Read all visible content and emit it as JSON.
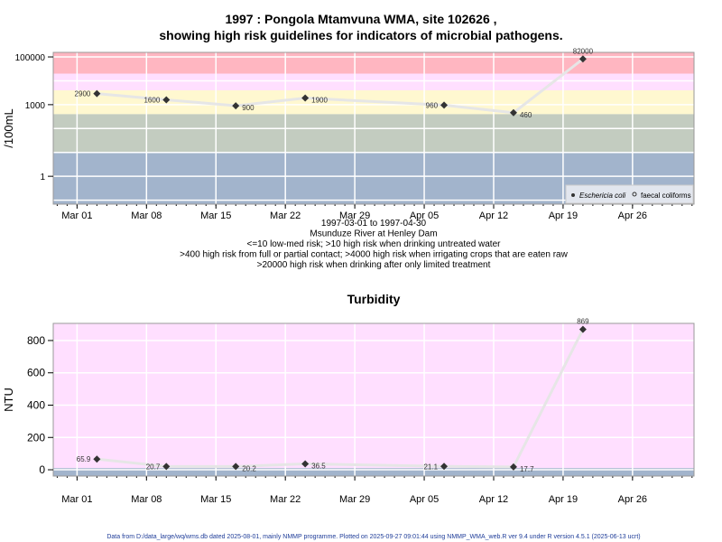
{
  "chart_data": [
    {
      "type": "line",
      "title_line1": "1997 : Pongola Mtamvuna WMA, site 102626 ,",
      "title_line2": "showing high risk guidelines for indicators of microbial pathogens.",
      "ylabel": "/100mL",
      "yscale": "log",
      "ylim": [
        0.068,
        155000
      ],
      "yticks": [
        {
          "v": 1,
          "label": "1"
        },
        {
          "v": 1000,
          "label": "1000"
        },
        {
          "v": 100000,
          "label": "100000"
        }
      ],
      "x_day_range": [
        -2.4,
        62.2
      ],
      "xticks": [
        {
          "day": 0,
          "label": "Mar 01"
        },
        {
          "day": 7,
          "label": "Mar 08"
        },
        {
          "day": 14,
          "label": "Mar 15"
        },
        {
          "day": 21,
          "label": "Mar 22"
        },
        {
          "day": 28,
          "label": "Mar 29"
        },
        {
          "day": 35,
          "label": "Apr 05"
        },
        {
          "day": 42,
          "label": "Apr 12"
        },
        {
          "day": 49,
          "label": "Apr 19"
        },
        {
          "day": 56,
          "label": "Apr 26"
        }
      ],
      "bands": [
        {
          "from": 20000,
          "to": 155000,
          "color": "#ffb6c1"
        },
        {
          "from": 4000,
          "to": 20000,
          "color": "#ffdfff"
        },
        {
          "from": 400,
          "to": 4000,
          "color": "#fff8d0"
        },
        {
          "from": 10,
          "to": 400,
          "color": "#c3ccc0"
        },
        {
          "from": 0.068,
          "to": 10,
          "color": "#a2b4cc"
        }
      ],
      "series": [
        {
          "name": "Eschericia coli",
          "x_dates": [
            "1997-03-03",
            "1997-03-10",
            "1997-03-17",
            "1997-03-24",
            "1997-04-07",
            "1997-04-14",
            "1997-04-21"
          ],
          "x_day": [
            2,
            9,
            16,
            23,
            37,
            44,
            51
          ],
          "values": [
            2900,
            1600,
            900,
            1900,
            960,
            460,
            82000
          ],
          "labels": [
            "2900",
            "1600",
            "900",
            "1900",
            "960",
            "460",
            "82000"
          ],
          "label_pos": [
            "left",
            "left",
            "right",
            "right",
            "left",
            "right",
            "top"
          ]
        }
      ],
      "legend": {
        "placement": "bottom-right",
        "entries": [
          "Eschericia coli",
          "faecal coliforms"
        ]
      },
      "xlabel_lines": [
        "1997-03-01 to 1997-04-30",
        "Msunduze River at Henley Dam",
        "<=10 low-med risk; >10 high risk when drinking untreated water",
        ">400 high risk from full or partial contact; >4000 high risk when irrigating crops that are eaten raw",
        ">20000 high risk when drinking after only limited treatment"
      ]
    },
    {
      "type": "line",
      "title": "Turbidity",
      "ylabel": "NTU",
      "yscale": "linear",
      "ylim": [
        -39,
        906
      ],
      "yticks": [
        {
          "v": 0,
          "label": "0"
        },
        {
          "v": 200,
          "label": "200"
        },
        {
          "v": 400,
          "label": "400"
        },
        {
          "v": 600,
          "label": "600"
        },
        {
          "v": 800,
          "label": "800"
        }
      ],
      "x_day_range": [
        -2.4,
        62.2
      ],
      "xticks": [
        {
          "day": 0,
          "label": "Mar 01"
        },
        {
          "day": 7,
          "label": "Mar 08"
        },
        {
          "day": 14,
          "label": "Mar 15"
        },
        {
          "day": 21,
          "label": "Mar 22"
        },
        {
          "day": 28,
          "label": "Mar 29"
        },
        {
          "day": 35,
          "label": "Apr 05"
        },
        {
          "day": 42,
          "label": "Apr 12"
        },
        {
          "day": 49,
          "label": "Apr 19"
        },
        {
          "day": 56,
          "label": "Apr 26"
        }
      ],
      "bands": [
        {
          "from": 10,
          "to": 906,
          "color": "#ffdfff"
        },
        {
          "from": -39,
          "to": 10,
          "color": "#a2b4cc"
        }
      ],
      "series": [
        {
          "name": "Turbidity",
          "x_day": [
            2,
            9,
            16,
            23,
            37,
            44,
            51
          ],
          "values": [
            65.9,
            20.7,
            20.2,
            36.5,
            21.1,
            17.7,
            869
          ],
          "labels": [
            "65.9",
            "20.7",
            "20.2",
            "36.5",
            "21.1",
            "17.7",
            "869"
          ],
          "label_pos": [
            "left",
            "left",
            "right",
            "right",
            "left",
            "right",
            "top"
          ]
        }
      ]
    }
  ],
  "footer": "Data from D:/data_large/wq/wms.db dated 2025-08-01, mainly NMMP programme. Plotted on 2025-09-27 09:01:44 using NMMP_WMA_web.R ver 9.4 under R version 4.5.1 (2025-06-13 ucrt)"
}
